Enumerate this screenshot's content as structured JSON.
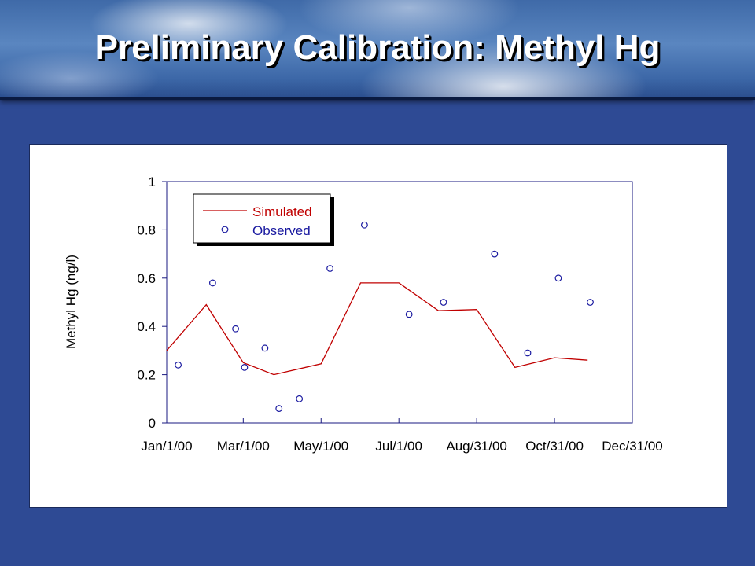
{
  "title": "Preliminary Calibration:  Methyl Hg",
  "colors": {
    "background": "#2e4a94",
    "simulated": "#c00000",
    "observed": "#1a1aa0",
    "legend_simulated_text": "#c00000",
    "legend_observed_text": "#1a1aa0"
  },
  "chart_data": {
    "type": "line",
    "xlabel": "",
    "ylabel": "Methyl Hg (ng/l)",
    "xlim": [
      "2000-01-01",
      "2000-12-31"
    ],
    "ylim": [
      0,
      1
    ],
    "x_ticks": [
      "Jan/1/00",
      "Mar/1/00",
      "May/1/00",
      "Jul/1/00",
      "Aug/31/00",
      "Oct/31/00",
      "Dec/31/00"
    ],
    "x_tick_dates": [
      "2000-01-01",
      "2000-03-01",
      "2000-05-01",
      "2000-07-01",
      "2000-08-31",
      "2000-10-31",
      "2000-12-31"
    ],
    "y_ticks": [
      "0",
      "0.2",
      "0.4",
      "0.6",
      "0.8",
      "1"
    ],
    "y_tick_values": [
      0,
      0.2,
      0.4,
      0.6,
      0.8,
      1
    ],
    "grid": false,
    "legend_position": "top-left",
    "series": [
      {
        "name": "Simulated",
        "kind": "line",
        "points": [
          {
            "x": "2000-01-01",
            "y": 0.3
          },
          {
            "x": "2000-02-01",
            "y": 0.49
          },
          {
            "x": "2000-03-01",
            "y": 0.25
          },
          {
            "x": "2000-03-25",
            "y": 0.2
          },
          {
            "x": "2000-05-01",
            "y": 0.245
          },
          {
            "x": "2000-06-01",
            "y": 0.58
          },
          {
            "x": "2000-07-01",
            "y": 0.58
          },
          {
            "x": "2000-08-01",
            "y": 0.465
          },
          {
            "x": "2000-08-31",
            "y": 0.47
          },
          {
            "x": "2000-09-30",
            "y": 0.23
          },
          {
            "x": "2000-10-31",
            "y": 0.27
          },
          {
            "x": "2000-11-26",
            "y": 0.26
          }
        ]
      },
      {
        "name": "Observed",
        "kind": "scatter",
        "points": [
          {
            "x": "2000-01-10",
            "y": 0.24
          },
          {
            "x": "2000-02-06",
            "y": 0.58
          },
          {
            "x": "2000-02-24",
            "y": 0.39
          },
          {
            "x": "2000-03-02",
            "y": 0.23
          },
          {
            "x": "2000-03-18",
            "y": 0.31
          },
          {
            "x": "2000-03-29",
            "y": 0.06
          },
          {
            "x": "2000-04-14",
            "y": 0.1
          },
          {
            "x": "2000-05-08",
            "y": 0.64
          },
          {
            "x": "2000-06-04",
            "y": 0.82
          },
          {
            "x": "2000-07-09",
            "y": 0.45
          },
          {
            "x": "2000-08-05",
            "y": 0.5
          },
          {
            "x": "2000-09-14",
            "y": 0.7
          },
          {
            "x": "2000-10-10",
            "y": 0.29
          },
          {
            "x": "2000-11-03",
            "y": 0.6
          },
          {
            "x": "2000-11-28",
            "y": 0.5
          }
        ]
      }
    ]
  }
}
